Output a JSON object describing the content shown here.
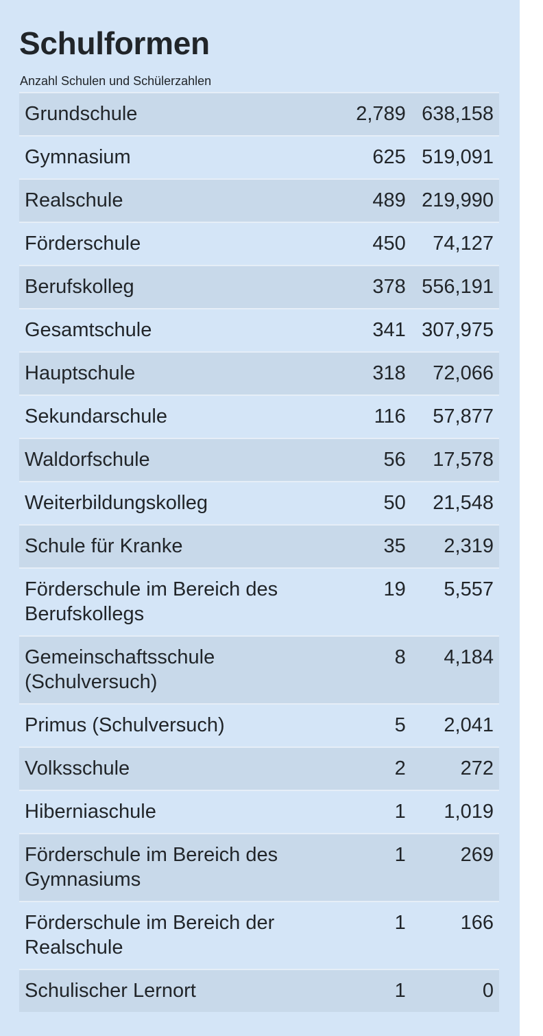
{
  "header": {
    "title": "Schulformen",
    "subtitle": "Anzahl Schulen und Schülerzahlen"
  },
  "rows": [
    {
      "name": "Grundschule",
      "schools": "2,789",
      "students": "638,158"
    },
    {
      "name": "Gymnasium",
      "schools": "625",
      "students": "519,091"
    },
    {
      "name": "Realschule",
      "schools": "489",
      "students": "219,990"
    },
    {
      "name": "Förderschule",
      "schools": "450",
      "students": "74,127"
    },
    {
      "name": "Berufskolleg",
      "schools": "378",
      "students": "556,191"
    },
    {
      "name": "Gesamtschule",
      "schools": "341",
      "students": "307,975"
    },
    {
      "name": "Hauptschule",
      "schools": "318",
      "students": "72,066"
    },
    {
      "name": "Sekundarschule",
      "schools": "116",
      "students": "57,877"
    },
    {
      "name": "Waldorfschule",
      "schools": "56",
      "students": "17,578"
    },
    {
      "name": "Weiterbildungskolleg",
      "schools": "50",
      "students": "21,548"
    },
    {
      "name": "Schule für Kranke",
      "schools": "35",
      "students": "2,319"
    },
    {
      "name": "Förderschule im Bereich des Berufskollegs",
      "schools": "19",
      "students": "5,557"
    },
    {
      "name": "Gemeinschaftsschule (Schulversuch)",
      "schools": "8",
      "students": "4,184"
    },
    {
      "name": "Primus (Schulversuch)",
      "schools": "5",
      "students": "2,041"
    },
    {
      "name": "Volksschule",
      "schools": "2",
      "students": "272"
    },
    {
      "name": "Hiberniaschule",
      "schools": "1",
      "students": "1,019"
    },
    {
      "name": "Förderschule im Bereich des Gymnasiums",
      "schools": "1",
      "students": "269"
    },
    {
      "name": "Förderschule im Bereich der Realschule",
      "schools": "1",
      "students": "166"
    },
    {
      "name": "Schulischer Lernort",
      "schools": "1",
      "students": "0"
    }
  ]
}
